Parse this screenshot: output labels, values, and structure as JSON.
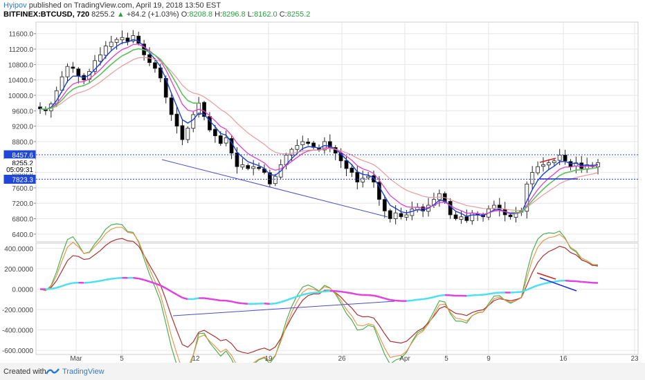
{
  "header": {
    "user": "Hyipov",
    "published_text": "published on TradingView.com, April 19, 2018 13:50 EST",
    "symbol": "BITFINEX:BTCUSD, 720",
    "last": "8255.2",
    "change_arrow": "▲",
    "change": "+84.2 (+1.03%)",
    "o_label": "O:",
    "o_value": "8208.8",
    "h_label": "H:",
    "h_value": "8296.8",
    "l_label": "L:",
    "l_value": "8162.0",
    "c_label": "C:",
    "c_value": "8255.2"
  },
  "footer": {
    "created_with": "Created with",
    "brand": "TradingView"
  },
  "chart_data": [
    {
      "type": "candlestick",
      "ylim": [
        6200,
        11900
      ],
      "y_ticks": [
        "11600.0",
        "11200.0",
        "10800.0",
        "10400.0",
        "10000.0",
        "9600.0",
        "9200.0",
        "8800.0",
        "8400.0",
        "8000.0",
        "7600.0",
        "7200.0",
        "6800.0",
        "6400.0"
      ],
      "price_labels": [
        {
          "text": "8457.6",
          "value": 8457.6,
          "bg": "#1f46d6",
          "fg": "#ffffff"
        },
        {
          "text": "8255.2",
          "value": 8255.2,
          "bg": "#ffffff",
          "fg": "#000000"
        },
        {
          "text": "05:09:31",
          "value": 8080,
          "bg": "#ffffff",
          "fg": "#000000"
        },
        {
          "text": "7823.3",
          "value": 7823.3,
          "bg": "#1f46d6",
          "fg": "#ffffff"
        }
      ],
      "hlines": [
        8457.6,
        7823.3
      ],
      "x_ticks": [
        "Mar",
        "5",
        "12",
        "19",
        "26",
        "Apr",
        "5",
        "9",
        "16",
        "23"
      ],
      "closes": [
        9650,
        9600,
        9780,
        10120,
        10480,
        10750,
        10700,
        10500,
        10400,
        10620,
        10900,
        11050,
        11280,
        11380,
        11450,
        11500,
        11400,
        11550,
        11350,
        11050,
        10850,
        10700,
        10450,
        9950,
        9500,
        9200,
        8850,
        9150,
        9500,
        9800,
        9450,
        9100,
        8950,
        8750,
        8900,
        8500,
        8150,
        8200,
        8100,
        8150,
        8100,
        8000,
        7700,
        7900,
        8200,
        8450,
        8600,
        8700,
        8800,
        8750,
        8650,
        8580,
        8800,
        8650,
        8500,
        8300,
        8100,
        8000,
        7750,
        7850,
        7900,
        7750,
        7300,
        7000,
        6800,
        6950,
        6850,
        6900,
        7050,
        7100,
        7000,
        7150,
        7300,
        7450,
        7250,
        6900,
        6800,
        6850,
        6750,
        6950,
        6900,
        6850,
        7050,
        7150,
        7050,
        6900,
        6850,
        6950,
        7000,
        7700,
        8000,
        8150,
        8200,
        8250,
        8300,
        8450,
        8300,
        8150,
        8250,
        8100,
        8200,
        8150,
        8255
      ]
    },
    {
      "type": "line",
      "ylim": [
        -640,
        450
      ],
      "y_ticks": [
        "400.0000",
        "200.0000",
        "0.0000",
        "-200.0000",
        "-400.0000",
        "-600.0000"
      ]
    }
  ],
  "colors": {
    "up": "#f5f5f5",
    "down": "#000000",
    "ema_fast": "#1a3fd8",
    "ema_mid": "#e040c8",
    "ema_slow": "#e89a9a",
    "green": "#5cbf5c",
    "grid": "#e6e6e6"
  }
}
